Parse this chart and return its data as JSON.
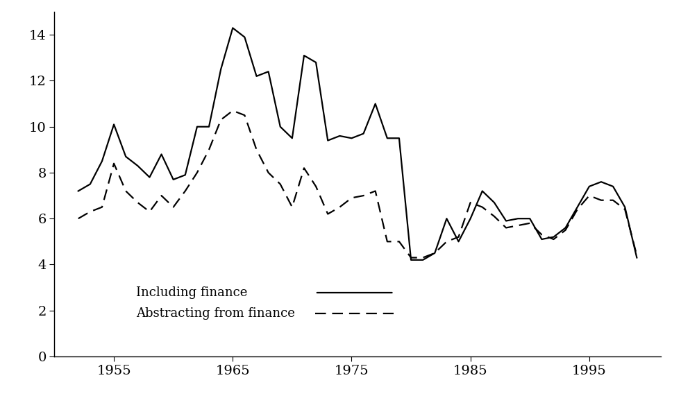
{
  "years": [
    1952,
    1953,
    1954,
    1955,
    1956,
    1957,
    1958,
    1959,
    1960,
    1961,
    1962,
    1963,
    1964,
    1965,
    1966,
    1967,
    1968,
    1969,
    1970,
    1971,
    1972,
    1973,
    1974,
    1975,
    1976,
    1977,
    1978,
    1979,
    1980,
    1981,
    1982,
    1983,
    1984,
    1985,
    1986,
    1987,
    1988,
    1989,
    1990,
    1991,
    1992,
    1993,
    1994,
    1995,
    1996,
    1997,
    1998,
    1999
  ],
  "including_finance": [
    7.2,
    7.5,
    8.5,
    10.1,
    8.7,
    8.3,
    7.8,
    8.8,
    7.7,
    7.9,
    10.0,
    10.0,
    12.5,
    14.3,
    13.9,
    12.2,
    12.4,
    10.0,
    9.5,
    13.1,
    12.8,
    9.4,
    9.6,
    9.5,
    9.7,
    11.0,
    9.5,
    9.5,
    4.2,
    4.2,
    4.5,
    6.0,
    5.0,
    6.0,
    7.2,
    6.7,
    5.9,
    6.0,
    6.0,
    5.1,
    5.2,
    5.6,
    6.5,
    7.4,
    7.6,
    7.4,
    6.5,
    4.3
  ],
  "abstracting_finance": [
    6.0,
    6.3,
    6.5,
    8.4,
    7.2,
    6.7,
    6.3,
    7.0,
    6.5,
    7.2,
    8.0,
    9.0,
    10.3,
    10.7,
    10.5,
    9.0,
    8.0,
    7.5,
    6.5,
    8.2,
    7.4,
    6.2,
    6.5,
    6.9,
    7.0,
    7.2,
    5.0,
    5.0,
    4.3,
    4.3,
    4.5,
    5.0,
    5.2,
    6.7,
    6.5,
    6.1,
    5.6,
    5.7,
    5.8,
    5.3,
    5.1,
    5.5,
    6.4,
    7.0,
    6.8,
    6.8,
    6.4,
    4.4
  ],
  "xlim": [
    1950,
    2001
  ],
  "ylim": [
    0,
    15
  ],
  "yticks": [
    0,
    2,
    4,
    6,
    8,
    10,
    12,
    14
  ],
  "xticks": [
    1955,
    1965,
    1975,
    1985,
    1995
  ],
  "line1_label": "Including finance",
  "line2_label": "Abstracting from finance",
  "line1_color": "#000000",
  "line2_color": "#000000",
  "background_color": "#ffffff",
  "fontsize": 14,
  "legend_fontsize": 13
}
